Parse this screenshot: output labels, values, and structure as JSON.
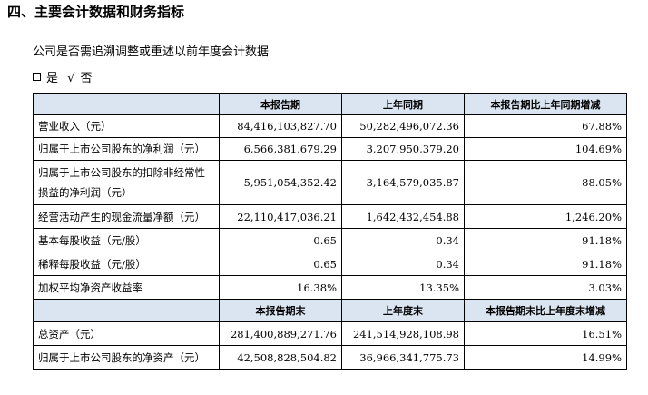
{
  "section_title": "四、主要会计数据和财务指标",
  "question": "公司是否需追溯调整或重述以前年度会计数据",
  "answer": {
    "yes_label": "是",
    "check_mark": "√",
    "no_label": "否"
  },
  "colors": {
    "header_bg": "#dbe5f1"
  },
  "table": {
    "header1": [
      "",
      "本报告期",
      "上年同期",
      "本报告期比上年同期增减"
    ],
    "rows1": [
      {
        "label": "营业收入（元）",
        "current": "84,416,103,827.70",
        "previous": "50,282,496,072.36",
        "change": "67.88%"
      },
      {
        "label": "归属于上市公司股东的净利润（元）",
        "current": "6,566,381,679.29",
        "previous": "3,207,950,379.20",
        "change": "104.69%"
      },
      {
        "label": "归属于上市公司股东的扣除非经常性损益的净利润（元）",
        "current": "5,951,054,352.42",
        "previous": "3,164,579,035.87",
        "change": "88.05%"
      },
      {
        "label": "经营活动产生的现金流量净额（元）",
        "current": "22,110,417,036.21",
        "previous": "1,642,432,454.88",
        "change": "1,246.20%"
      },
      {
        "label": "基本每股收益（元/股）",
        "current": "0.65",
        "previous": "0.34",
        "change": "91.18%"
      },
      {
        "label": "稀释每股收益（元/股）",
        "current": "0.65",
        "previous": "0.34",
        "change": "91.18%"
      },
      {
        "label": "加权平均净资产收益率",
        "current": "16.38%",
        "previous": "13.35%",
        "change": "3.03%"
      }
    ],
    "header2": [
      "",
      "本报告期末",
      "上年度末",
      "本报告期末比上年度末增减"
    ],
    "rows2": [
      {
        "label": "总资产（元）",
        "current": "281,400,889,271.76",
        "previous": "241,514,928,108.98",
        "change": "16.51%"
      },
      {
        "label": "归属于上市公司股东的净资产（元）",
        "current": "42,508,828,504.82",
        "previous": "36,966,341,775.73",
        "change": "14.99%"
      }
    ]
  }
}
